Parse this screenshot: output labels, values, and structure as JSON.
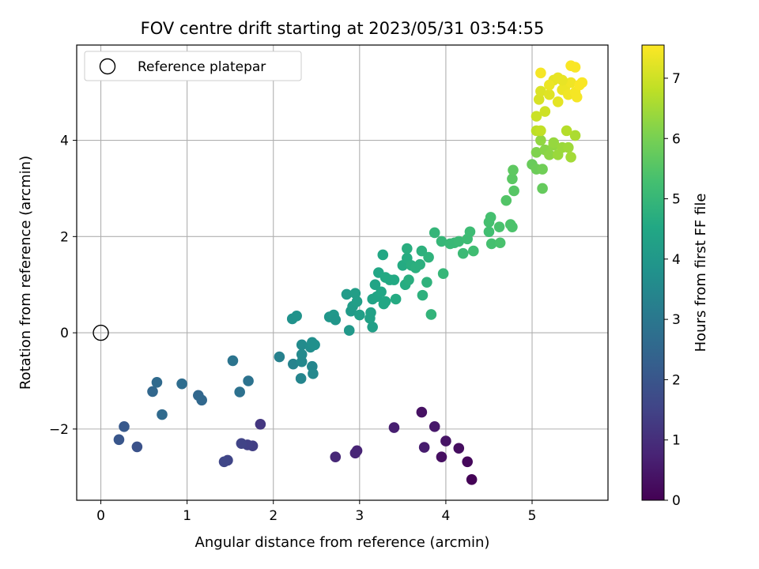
{
  "chart_data": {
    "type": "scatter",
    "title": "FOV centre drift starting at 2023/05/31 03:54:55",
    "xlabel": "Angular distance from reference (arcmin)",
    "ylabel": "Rotation from reference (arcmin)",
    "xlim": [
      -0.28,
      5.88
    ],
    "ylim": [
      -3.48,
      5.98
    ],
    "xticks": [
      0,
      1,
      2,
      3,
      4,
      5
    ],
    "yticks": [
      -2,
      0,
      2,
      4
    ],
    "grid": true,
    "colorbar": {
      "label": "Hours from first FF file",
      "range": [
        0,
        7.55
      ],
      "ticks": [
        0,
        1,
        2,
        3,
        4,
        5,
        6,
        7
      ],
      "colormap": "viridis"
    },
    "legend": {
      "position": "top-left",
      "entries": [
        {
          "label": "Reference platepar",
          "marker": "open-circle"
        }
      ]
    },
    "reference_point": {
      "x": 0,
      "y": 0
    },
    "points": [
      {
        "x": 4.3,
        "y": -3.05,
        "c": 0.05
      },
      {
        "x": 4.25,
        "y": -2.68,
        "c": 0.15
      },
      {
        "x": 4.15,
        "y": -2.4,
        "c": 0.25
      },
      {
        "x": 3.95,
        "y": -2.58,
        "c": 0.3
      },
      {
        "x": 4.0,
        "y": -2.25,
        "c": 0.4
      },
      {
        "x": 3.87,
        "y": -1.95,
        "c": 0.5
      },
      {
        "x": 3.72,
        "y": -1.65,
        "c": 0.35
      },
      {
        "x": 3.75,
        "y": -2.38,
        "c": 0.6
      },
      {
        "x": 3.4,
        "y": -1.97,
        "c": 0.65
      },
      {
        "x": 2.97,
        "y": -2.45,
        "c": 0.75
      },
      {
        "x": 2.95,
        "y": -2.5,
        "c": 0.8
      },
      {
        "x": 2.72,
        "y": -2.58,
        "c": 0.85
      },
      {
        "x": 1.85,
        "y": -1.9,
        "c": 1.2
      },
      {
        "x": 1.76,
        "y": -2.35,
        "c": 1.4
      },
      {
        "x": 1.7,
        "y": -2.33,
        "c": 1.45
      },
      {
        "x": 1.63,
        "y": -2.3,
        "c": 1.5
      },
      {
        "x": 1.47,
        "y": -2.65,
        "c": 1.55
      },
      {
        "x": 1.43,
        "y": -2.68,
        "c": 1.6
      },
      {
        "x": 0.42,
        "y": -2.37,
        "c": 1.9
      },
      {
        "x": 0.21,
        "y": -2.22,
        "c": 2.0
      },
      {
        "x": 0.27,
        "y": -1.95,
        "c": 2.1
      },
      {
        "x": 0.71,
        "y": -1.7,
        "c": 2.6
      },
      {
        "x": 0.6,
        "y": -1.22,
        "c": 2.5
      },
      {
        "x": 0.65,
        "y": -1.03,
        "c": 2.6
      },
      {
        "x": 0.94,
        "y": -1.06,
        "c": 2.7
      },
      {
        "x": 1.13,
        "y": -1.3,
        "c": 2.5
      },
      {
        "x": 1.17,
        "y": -1.4,
        "c": 2.55
      },
      {
        "x": 1.53,
        "y": -0.58,
        "c": 2.9
      },
      {
        "x": 1.61,
        "y": -1.23,
        "c": 2.8
      },
      {
        "x": 1.71,
        "y": -1.0,
        "c": 2.85
      },
      {
        "x": 2.07,
        "y": -0.5,
        "c": 3.3
      },
      {
        "x": 2.23,
        "y": -0.65,
        "c": 3.35
      },
      {
        "x": 2.32,
        "y": -0.95,
        "c": 3.4
      },
      {
        "x": 2.33,
        "y": -0.6,
        "c": 3.5
      },
      {
        "x": 2.33,
        "y": -0.45,
        "c": 3.55
      },
      {
        "x": 2.33,
        "y": -0.25,
        "c": 3.6
      },
      {
        "x": 2.43,
        "y": -0.3,
        "c": 3.65
      },
      {
        "x": 2.45,
        "y": -0.2,
        "c": 3.7
      },
      {
        "x": 2.48,
        "y": -0.25,
        "c": 3.75
      },
      {
        "x": 2.45,
        "y": -0.7,
        "c": 3.45
      },
      {
        "x": 2.46,
        "y": -0.85,
        "c": 3.5
      },
      {
        "x": 2.22,
        "y": 0.29,
        "c": 3.8
      },
      {
        "x": 2.27,
        "y": 0.35,
        "c": 3.85
      },
      {
        "x": 2.65,
        "y": 0.33,
        "c": 3.95
      },
      {
        "x": 2.7,
        "y": 0.37,
        "c": 4.0
      },
      {
        "x": 2.72,
        "y": 0.27,
        "c": 3.95
      },
      {
        "x": 2.88,
        "y": 0.05,
        "c": 4.0
      },
      {
        "x": 2.85,
        "y": 0.8,
        "c": 4.1
      },
      {
        "x": 2.9,
        "y": 0.45,
        "c": 4.1
      },
      {
        "x": 2.92,
        "y": 0.55,
        "c": 4.15
      },
      {
        "x": 2.95,
        "y": 0.82,
        "c": 4.2
      },
      {
        "x": 2.97,
        "y": 0.65,
        "c": 4.2
      },
      {
        "x": 3.0,
        "y": 0.37,
        "c": 4.25
      },
      {
        "x": 3.12,
        "y": 0.3,
        "c": 4.3
      },
      {
        "x": 3.13,
        "y": 0.42,
        "c": 4.3
      },
      {
        "x": 3.15,
        "y": 0.12,
        "c": 4.25
      },
      {
        "x": 3.15,
        "y": 0.7,
        "c": 4.35
      },
      {
        "x": 3.18,
        "y": 1.0,
        "c": 4.4
      },
      {
        "x": 3.2,
        "y": 0.75,
        "c": 4.4
      },
      {
        "x": 3.22,
        "y": 1.25,
        "c": 4.45
      },
      {
        "x": 3.25,
        "y": 0.85,
        "c": 4.45
      },
      {
        "x": 3.27,
        "y": 1.62,
        "c": 4.5
      },
      {
        "x": 3.28,
        "y": 0.6,
        "c": 4.5
      },
      {
        "x": 3.3,
        "y": 0.65,
        "c": 4.5
      },
      {
        "x": 3.35,
        "y": 1.1,
        "c": 4.55
      },
      {
        "x": 3.4,
        "y": 1.1,
        "c": 4.55
      },
      {
        "x": 3.42,
        "y": 0.7,
        "c": 4.6
      },
      {
        "x": 3.3,
        "y": 1.15,
        "c": 4.55
      },
      {
        "x": 3.5,
        "y": 1.4,
        "c": 4.6
      },
      {
        "x": 3.53,
        "y": 1.0,
        "c": 4.65
      },
      {
        "x": 3.55,
        "y": 1.55,
        "c": 4.65
      },
      {
        "x": 3.55,
        "y": 1.75,
        "c": 4.7
      },
      {
        "x": 3.57,
        "y": 1.1,
        "c": 4.7
      },
      {
        "x": 3.6,
        "y": 1.4,
        "c": 4.7
      },
      {
        "x": 3.65,
        "y": 1.35,
        "c": 4.75
      },
      {
        "x": 3.7,
        "y": 1.42,
        "c": 4.75
      },
      {
        "x": 3.72,
        "y": 1.7,
        "c": 4.8
      },
      {
        "x": 3.73,
        "y": 0.78,
        "c": 4.8
      },
      {
        "x": 3.78,
        "y": 1.05,
        "c": 4.85
      },
      {
        "x": 3.8,
        "y": 1.57,
        "c": 4.85
      },
      {
        "x": 3.83,
        "y": 0.38,
        "c": 4.9
      },
      {
        "x": 3.87,
        "y": 2.08,
        "c": 4.95
      },
      {
        "x": 3.95,
        "y": 1.9,
        "c": 5.0
      },
      {
        "x": 3.97,
        "y": 1.23,
        "c": 5.0
      },
      {
        "x": 4.05,
        "y": 1.85,
        "c": 5.05
      },
      {
        "x": 4.1,
        "y": 1.87,
        "c": 5.05
      },
      {
        "x": 4.15,
        "y": 1.9,
        "c": 5.1
      },
      {
        "x": 4.2,
        "y": 1.65,
        "c": 5.1
      },
      {
        "x": 4.25,
        "y": 1.95,
        "c": 5.15
      },
      {
        "x": 4.28,
        "y": 2.1,
        "c": 5.15
      },
      {
        "x": 4.32,
        "y": 1.7,
        "c": 5.2
      },
      {
        "x": 4.5,
        "y": 2.1,
        "c": 5.25
      },
      {
        "x": 4.5,
        "y": 2.3,
        "c": 5.3
      },
      {
        "x": 4.52,
        "y": 2.4,
        "c": 5.3
      },
      {
        "x": 4.53,
        "y": 1.85,
        "c": 5.3
      },
      {
        "x": 4.62,
        "y": 2.2,
        "c": 5.35
      },
      {
        "x": 4.63,
        "y": 1.87,
        "c": 5.35
      },
      {
        "x": 4.75,
        "y": 2.25,
        "c": 5.4
      },
      {
        "x": 4.77,
        "y": 2.2,
        "c": 5.4
      },
      {
        "x": 4.7,
        "y": 2.75,
        "c": 5.5
      },
      {
        "x": 4.77,
        "y": 3.2,
        "c": 5.6
      },
      {
        "x": 4.78,
        "y": 3.38,
        "c": 5.65
      },
      {
        "x": 4.79,
        "y": 2.95,
        "c": 5.55
      },
      {
        "x": 5.0,
        "y": 3.5,
        "c": 5.8
      },
      {
        "x": 5.05,
        "y": 3.4,
        "c": 5.85
      },
      {
        "x": 5.12,
        "y": 3.4,
        "c": 5.9
      },
      {
        "x": 5.12,
        "y": 3.0,
        "c": 5.75
      },
      {
        "x": 5.05,
        "y": 3.75,
        "c": 6.1
      },
      {
        "x": 5.1,
        "y": 4.0,
        "c": 6.3
      },
      {
        "x": 5.15,
        "y": 3.8,
        "c": 6.2
      },
      {
        "x": 5.2,
        "y": 3.7,
        "c": 6.25
      },
      {
        "x": 5.25,
        "y": 3.9,
        "c": 6.3
      },
      {
        "x": 5.25,
        "y": 3.95,
        "c": 6.35
      },
      {
        "x": 5.3,
        "y": 3.7,
        "c": 6.4
      },
      {
        "x": 5.35,
        "y": 3.85,
        "c": 6.4
      },
      {
        "x": 5.42,
        "y": 3.85,
        "c": 6.45
      },
      {
        "x": 5.45,
        "y": 3.65,
        "c": 6.5
      },
      {
        "x": 5.5,
        "y": 4.1,
        "c": 6.6
      },
      {
        "x": 5.4,
        "y": 4.2,
        "c": 6.7
      },
      {
        "x": 5.05,
        "y": 4.2,
        "c": 6.8
      },
      {
        "x": 5.1,
        "y": 4.2,
        "c": 6.85
      },
      {
        "x": 5.05,
        "y": 4.5,
        "c": 6.95
      },
      {
        "x": 5.15,
        "y": 4.6,
        "c": 7.0
      },
      {
        "x": 5.08,
        "y": 4.85,
        "c": 7.1
      },
      {
        "x": 5.1,
        "y": 5.02,
        "c": 7.15
      },
      {
        "x": 5.2,
        "y": 4.95,
        "c": 7.2
      },
      {
        "x": 5.25,
        "y": 5.25,
        "c": 7.25
      },
      {
        "x": 5.3,
        "y": 5.3,
        "c": 7.3
      },
      {
        "x": 5.3,
        "y": 4.8,
        "c": 7.25
      },
      {
        "x": 5.35,
        "y": 5.05,
        "c": 7.35
      },
      {
        "x": 5.38,
        "y": 5.1,
        "c": 7.35
      },
      {
        "x": 5.42,
        "y": 4.95,
        "c": 7.4
      },
      {
        "x": 5.45,
        "y": 5.2,
        "c": 7.4
      },
      {
        "x": 5.5,
        "y": 5.0,
        "c": 7.45
      },
      {
        "x": 5.52,
        "y": 4.9,
        "c": 7.45
      },
      {
        "x": 5.55,
        "y": 5.15,
        "c": 7.5
      },
      {
        "x": 5.58,
        "y": 5.2,
        "c": 7.5
      },
      {
        "x": 5.45,
        "y": 5.55,
        "c": 7.5
      },
      {
        "x": 5.5,
        "y": 5.52,
        "c": 7.5
      },
      {
        "x": 5.1,
        "y": 5.4,
        "c": 7.45
      },
      {
        "x": 5.2,
        "y": 5.15,
        "c": 7.35
      },
      {
        "x": 5.35,
        "y": 5.25,
        "c": 7.3
      }
    ]
  }
}
